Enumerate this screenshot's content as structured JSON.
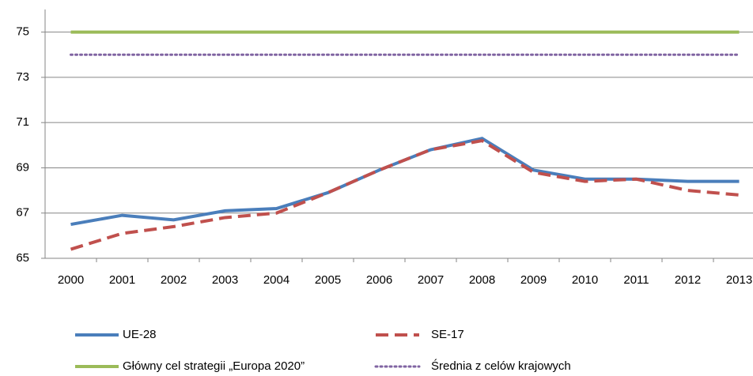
{
  "chart_data": {
    "type": "line",
    "categories": [
      "2000",
      "2001",
      "2002",
      "2003",
      "2004",
      "2005",
      "2006",
      "2007",
      "2008",
      "2009",
      "2010",
      "2011",
      "2012",
      "2013"
    ],
    "series": [
      {
        "name": "UE-28",
        "color": "#4a7ebb",
        "style": "solid",
        "values": [
          66.5,
          66.9,
          66.7,
          67.1,
          67.2,
          67.9,
          68.9,
          69.8,
          70.3,
          68.9,
          68.5,
          68.5,
          68.4,
          68.4
        ]
      },
      {
        "name": "SE-17",
        "color": "#c0504d",
        "style": "dashed",
        "values": [
          65.4,
          66.1,
          66.4,
          66.8,
          67.0,
          67.9,
          68.9,
          69.8,
          70.2,
          68.8,
          68.4,
          68.5,
          68.0,
          67.8
        ]
      },
      {
        "name": "Główny cel strategii „Europa 2020”",
        "color": "#9bbb59",
        "style": "solid",
        "values": [
          75,
          75,
          75,
          75,
          75,
          75,
          75,
          75,
          75,
          75,
          75,
          75,
          75,
          75
        ]
      },
      {
        "name": "Średnia z celów krajowych",
        "color": "#8064a2",
        "style": "dotted",
        "values": [
          74,
          74,
          74,
          74,
          74,
          74,
          74,
          74,
          74,
          74,
          74,
          74,
          74,
          74
        ]
      }
    ],
    "ylim": [
      65,
      76
    ],
    "yticks": [
      65,
      67,
      69,
      71,
      73,
      75
    ],
    "grid": true
  }
}
